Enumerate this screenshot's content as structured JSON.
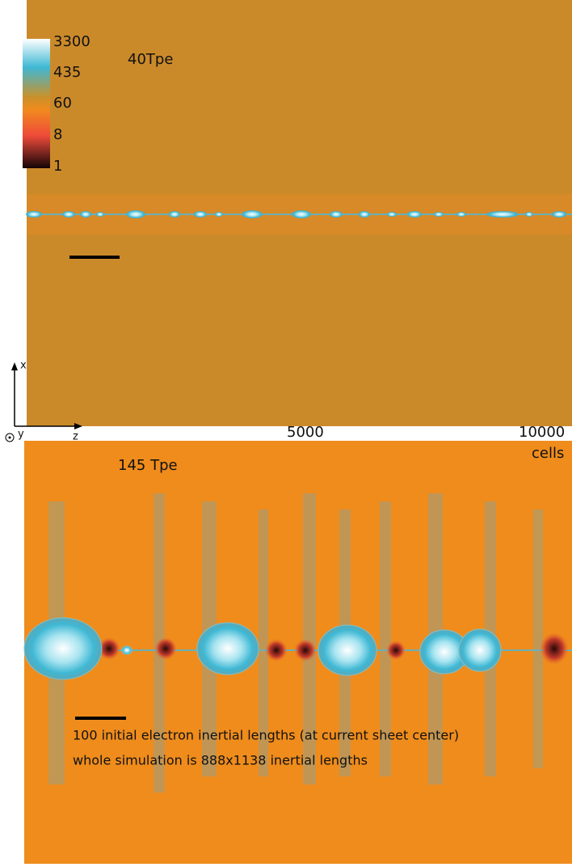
{
  "colorbar": {
    "labels": [
      3300,
      435,
      60,
      8,
      1
    ]
  },
  "top_panel": {
    "label": "40Tpe"
  },
  "axes": {
    "x": "x",
    "y": "y",
    "z": "z",
    "ticks": [
      5000,
      10000
    ],
    "unit": "cells"
  },
  "bottom_panel": {
    "label": "145 Tpe",
    "notes": [
      "100 initial electron inertial lengths (at current sheet center)",
      "whole simulation is 888x1138 inertial lengths"
    ]
  }
}
